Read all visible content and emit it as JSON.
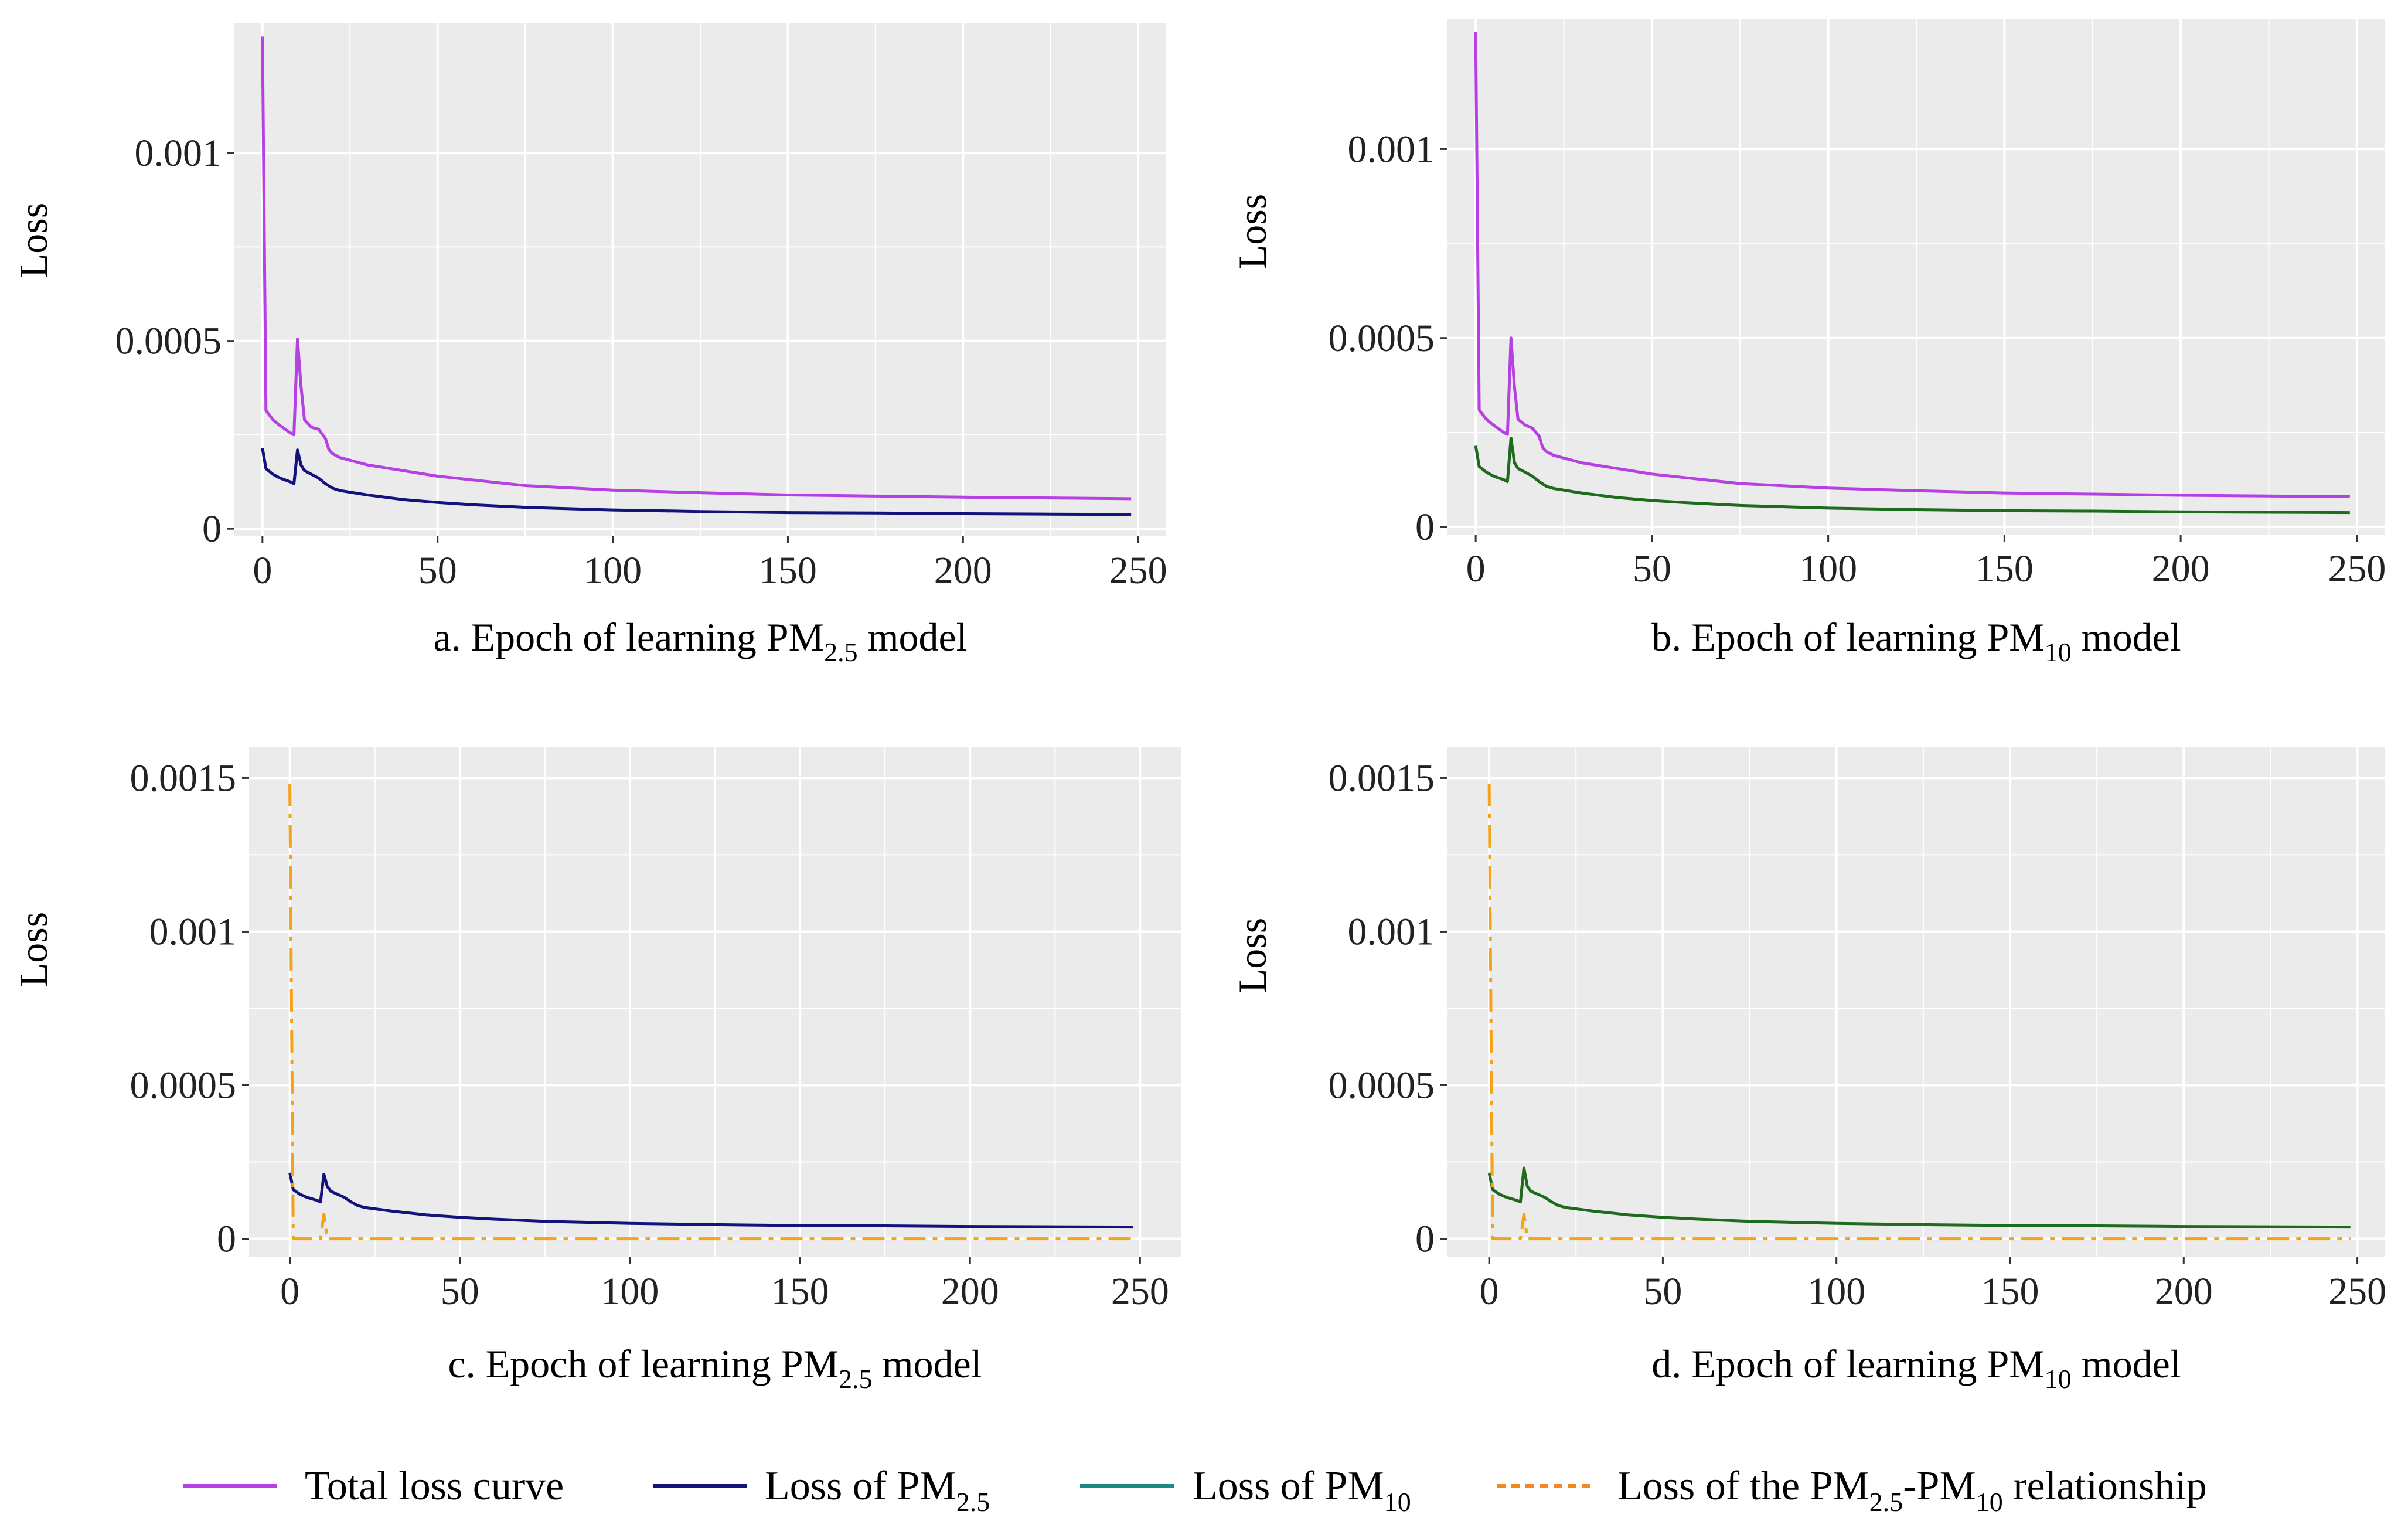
{
  "colors": {
    "total": "#B541E3",
    "pm25": "#14127D",
    "pm10": "#1E6B1E",
    "relationship": "#F4A21A",
    "legend_pm10": "#1A8A84",
    "legend_relationship": "#F08A1E",
    "panel_bg": "#EBEBEB",
    "grid": "#FFFFFF"
  },
  "legend": {
    "total": "Total loss curve",
    "pm25_prefix": "Loss of PM",
    "pm25_sub": "2.5",
    "pm10_prefix": "Loss of PM",
    "pm10_sub": "10",
    "rel_prefix": "Loss of the PM",
    "rel_sub1": "2.5",
    "rel_mid": "-PM",
    "rel_sub2": "10",
    "rel_suffix": " relationship"
  },
  "chart_data": [
    {
      "type": "line",
      "id": "a",
      "xlabel": {
        "prefix": "a. Epoch of learning PM",
        "sub": "2.5",
        "suffix": " model"
      },
      "ylabel": "Loss",
      "xlim": [
        -8,
        258
      ],
      "ylim": [
        -2e-05,
        0.001345
      ],
      "x_ticks": [
        0,
        50,
        100,
        150,
        200,
        250
      ],
      "x_tick_labels": [
        "0",
        "50",
        "100",
        "150",
        "200",
        "250"
      ],
      "y_ticks": [
        0,
        0.0005,
        0.001
      ],
      "y_tick_labels": [
        "0",
        "0.0005",
        "0.001"
      ],
      "series": [
        {
          "key": "total",
          "color_key": "total",
          "dash": "",
          "x": [
            0,
            1,
            3,
            5,
            8,
            9,
            10,
            11,
            12,
            14,
            16,
            18,
            19,
            20,
            22,
            30,
            40,
            50,
            60,
            75,
            100,
            125,
            150,
            175,
            200,
            225,
            248
          ],
          "y": [
            0.00131,
            0.000315,
            0.00029,
            0.000275,
            0.000255,
            0.00025,
            0.000505,
            0.00038,
            0.00029,
            0.00027,
            0.000265,
            0.00024,
            0.00021,
            0.0002,
            0.00019,
            0.00017,
            0.000155,
            0.00014,
            0.00013,
            0.000115,
            0.000103,
            9.6e-05,
            9e-05,
            8.7e-05,
            8.4e-05,
            8.2e-05,
            8e-05
          ]
        },
        {
          "key": "pm25",
          "color_key": "pm25",
          "dash": "",
          "x": [
            0,
            1,
            3,
            5,
            8,
            9,
            10,
            11,
            12,
            14,
            16,
            18,
            20,
            22,
            30,
            40,
            50,
            60,
            75,
            100,
            125,
            150,
            175,
            200,
            225,
            248
          ],
          "y": [
            0.000215,
            0.00016,
            0.000145,
            0.000135,
            0.000125,
            0.00012,
            0.00021,
            0.00017,
            0.000155,
            0.000145,
            0.000135,
            0.00012,
            0.000108,
            0.000102,
            9e-05,
            7.8e-05,
            7e-05,
            6.4e-05,
            5.7e-05,
            5e-05,
            4.6e-05,
            4.3e-05,
            4.2e-05,
            4e-05,
            3.9e-05,
            3.8e-05
          ]
        }
      ]
    },
    {
      "type": "line",
      "id": "b",
      "xlabel": {
        "prefix": "b. Epoch of learning PM",
        "sub": "10",
        "suffix": " model"
      },
      "ylabel": "Loss",
      "xlim": [
        -8,
        258
      ],
      "ylim": [
        -2e-05,
        0.001345
      ],
      "x_ticks": [
        0,
        50,
        100,
        150,
        200,
        250
      ],
      "x_tick_labels": [
        "0",
        "50",
        "100",
        "150",
        "200",
        "250"
      ],
      "y_ticks": [
        0,
        0.0005,
        0.001
      ],
      "y_tick_labels": [
        "0",
        "0.0005",
        "0.001"
      ],
      "series": [
        {
          "key": "total",
          "color_key": "total",
          "dash": "",
          "x": [
            0,
            1,
            3,
            5,
            8,
            9,
            10,
            11,
            12,
            14,
            16,
            18,
            19,
            20,
            22,
            30,
            40,
            50,
            60,
            75,
            100,
            125,
            150,
            175,
            200,
            225,
            248
          ],
          "y": [
            0.00131,
            0.00031,
            0.000285,
            0.00027,
            0.00025,
            0.000245,
            0.0005,
            0.00037,
            0.000285,
            0.00027,
            0.000262,
            0.00024,
            0.00021,
            0.0002,
            0.00019,
            0.00017,
            0.000155,
            0.00014,
            0.00013,
            0.000115,
            0.000103,
            9.6e-05,
            9e-05,
            8.7e-05,
            8.4e-05,
            8.2e-05,
            8e-05
          ]
        },
        {
          "key": "pm10",
          "color_key": "pm10",
          "dash": "",
          "x": [
            0,
            1,
            3,
            5,
            8,
            9,
            10,
            11,
            12,
            14,
            16,
            18,
            20,
            22,
            30,
            40,
            50,
            60,
            75,
            100,
            125,
            150,
            175,
            200,
            225,
            248
          ],
          "y": [
            0.000215,
            0.00016,
            0.000145,
            0.000135,
            0.000125,
            0.00012,
            0.000235,
            0.00017,
            0.000155,
            0.000145,
            0.000135,
            0.00012,
            0.000108,
            0.000102,
            9e-05,
            7.8e-05,
            7e-05,
            6.4e-05,
            5.7e-05,
            5e-05,
            4.6e-05,
            4.3e-05,
            4.2e-05,
            4e-05,
            3.9e-05,
            3.8e-05
          ]
        }
      ]
    },
    {
      "type": "line",
      "id": "c",
      "xlabel": {
        "prefix": "c. Epoch of learning PM",
        "sub": "2.5",
        "suffix": " model"
      },
      "ylabel": "Loss",
      "xlim": [
        -12,
        262
      ],
      "ylim": [
        -6e-05,
        0.0016
      ],
      "x_ticks": [
        0,
        50,
        100,
        150,
        200,
        250
      ],
      "x_tick_labels": [
        "0",
        "50",
        "100",
        "150",
        "200",
        "250"
      ],
      "y_ticks": [
        0,
        0.0005,
        0.001,
        0.0015
      ],
      "y_tick_labels": [
        "0",
        "0.0005",
        "0.001",
        "0.0015"
      ],
      "series": [
        {
          "key": "pm25",
          "color_key": "pm25",
          "dash": "",
          "x": [
            0,
            1,
            3,
            5,
            8,
            9,
            10,
            11,
            12,
            14,
            16,
            18,
            20,
            22,
            30,
            40,
            50,
            60,
            75,
            100,
            125,
            150,
            175,
            200,
            225,
            248
          ],
          "y": [
            0.000215,
            0.00016,
            0.000145,
            0.000135,
            0.000125,
            0.00012,
            0.00021,
            0.00017,
            0.000155,
            0.000145,
            0.000135,
            0.00012,
            0.000108,
            0.000102,
            9e-05,
            7.8e-05,
            7e-05,
            6.4e-05,
            5.7e-05,
            5e-05,
            4.6e-05,
            4.3e-05,
            4.2e-05,
            4e-05,
            3.9e-05,
            3.8e-05
          ]
        },
        {
          "key": "relationship",
          "color_key": "relationship",
          "dash": "38 12 8 12",
          "x": [
            0,
            1,
            8,
            9,
            10,
            11,
            12,
            248
          ],
          "y": [
            0.00148,
            0.0,
            0.0,
            0.0,
            8e-05,
            0.0,
            0.0,
            0.0
          ]
        }
      ]
    },
    {
      "type": "line",
      "id": "d",
      "xlabel": {
        "prefix": "d. Epoch of learning PM",
        "sub": "10",
        "suffix": " model"
      },
      "ylabel": "Loss",
      "xlim": [
        -12,
        258
      ],
      "ylim": [
        -6e-05,
        0.0016
      ],
      "x_ticks": [
        0,
        50,
        100,
        150,
        200,
        250
      ],
      "x_tick_labels": [
        "0",
        "50",
        "100",
        "150",
        "200",
        "250"
      ],
      "y_ticks": [
        0,
        0.0005,
        0.001,
        0.0015
      ],
      "y_tick_labels": [
        "0",
        "0.0005",
        "0.001",
        "0.0015"
      ],
      "series": [
        {
          "key": "pm10",
          "color_key": "pm10",
          "dash": "",
          "x": [
            0,
            1,
            3,
            5,
            8,
            9,
            10,
            11,
            12,
            14,
            16,
            18,
            20,
            22,
            30,
            40,
            50,
            60,
            75,
            100,
            125,
            150,
            175,
            200,
            225,
            248
          ],
          "y": [
            0.000215,
            0.00016,
            0.000145,
            0.000135,
            0.000125,
            0.00012,
            0.00023,
            0.00017,
            0.000155,
            0.000145,
            0.000135,
            0.00012,
            0.000108,
            0.000102,
            9e-05,
            7.8e-05,
            7e-05,
            6.4e-05,
            5.7e-05,
            5e-05,
            4.6e-05,
            4.3e-05,
            4.2e-05,
            4e-05,
            3.9e-05,
            3.8e-05
          ]
        },
        {
          "key": "relationship",
          "color_key": "relationship",
          "dash": "38 12 8 12",
          "x": [
            0,
            1,
            8,
            9,
            10,
            11,
            12,
            248
          ],
          "y": [
            0.00148,
            0.0,
            0.0,
            0.0,
            8e-05,
            0.0,
            0.0,
            0.0
          ]
        }
      ]
    }
  ]
}
